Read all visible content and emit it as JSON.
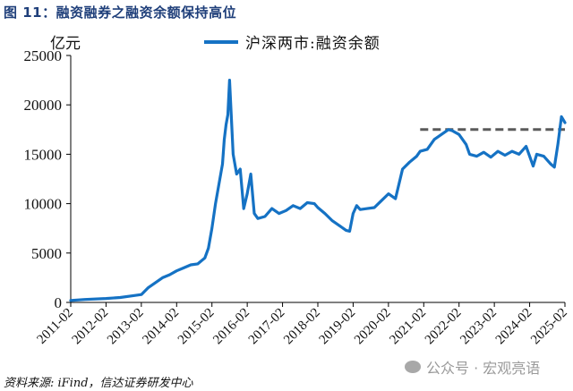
{
  "figure": {
    "title": "图 11：融资融券之融资余额保持高位",
    "unit_label": "亿元",
    "source": "资料来源: iFind，信达证券研发中心",
    "watermark": "公众号 · 宏观亮语"
  },
  "legend": {
    "series_label": "沪深两市:融资余额",
    "series_color": "#1572c4",
    "reference_color": "#5a5a5a"
  },
  "chart_data": {
    "type": "line",
    "title": "融资融券之融资余额保持高位",
    "xlabel": "",
    "ylabel": "亿元",
    "ylim": [
      0,
      25000
    ],
    "yticks": [
      0,
      5000,
      10000,
      15000,
      20000,
      25000
    ],
    "ytick_labels": [
      "0",
      "5000",
      "10000",
      "15000",
      "20000",
      "25000"
    ],
    "xtick_labels": [
      "2011-02",
      "2012-02",
      "2013-02",
      "2014-02",
      "2015-02",
      "2016-02",
      "2017-02",
      "2018-02",
      "2019-02",
      "2020-02",
      "2021-02",
      "2022-02",
      "2023-02",
      "2024-02",
      "2025-02"
    ],
    "grid": false,
    "legend_position": "top-center",
    "series": [
      {
        "name": "沪深两市:融资余额",
        "color": "#1572c4",
        "x": [
          2011.1,
          2011.5,
          2012.1,
          2012.5,
          2012.9,
          2013.1,
          2013.3,
          2013.5,
          2013.7,
          2013.9,
          2014.1,
          2014.3,
          2014.5,
          2014.7,
          2014.9,
          2015.0,
          2015.1,
          2015.2,
          2015.3,
          2015.4,
          2015.45,
          2015.5,
          2015.55,
          2015.6,
          2015.7,
          2015.8,
          2015.9,
          2016.0,
          2016.1,
          2016.2,
          2016.3,
          2016.4,
          2016.6,
          2016.8,
          2017.0,
          2017.2,
          2017.4,
          2017.6,
          2017.8,
          2018.0,
          2018.1,
          2018.3,
          2018.5,
          2018.7,
          2018.9,
          2019.0,
          2019.1,
          2019.2,
          2019.3,
          2019.5,
          2019.7,
          2019.9,
          2020.1,
          2020.3,
          2020.5,
          2020.7,
          2020.8,
          2020.9,
          2021.0,
          2021.2,
          2021.4,
          2021.6,
          2021.8,
          2021.9,
          2022.1,
          2022.3,
          2022.4,
          2022.6,
          2022.8,
          2023.0,
          2023.2,
          2023.4,
          2023.6,
          2023.8,
          2024.0,
          2024.2,
          2024.3,
          2024.5,
          2024.7,
          2024.8,
          2024.9,
          2025.0,
          2025.1
        ],
        "values": [
          200,
          300,
          400,
          500,
          700,
          800,
          1500,
          2000,
          2500,
          2800,
          3200,
          3500,
          3800,
          3900,
          4500,
          5500,
          7500,
          10000,
          12000,
          14000,
          16500,
          18000,
          19000,
          22500,
          15000,
          13000,
          13500,
          9500,
          11000,
          13000,
          9000,
          8500,
          8700,
          9500,
          9000,
          9300,
          9800,
          9500,
          10100,
          10000,
          9600,
          9000,
          8300,
          7800,
          7300,
          7200,
          9000,
          9800,
          9400,
          9500,
          9600,
          10300,
          11000,
          10500,
          13500,
          14200,
          14500,
          14800,
          15300,
          15500,
          16500,
          17000,
          17500,
          17400,
          17000,
          16000,
          15000,
          14800,
          15200,
          14700,
          15300,
          14900,
          15300,
          15000,
          15800,
          13800,
          15000,
          14800,
          14000,
          13700,
          16000,
          18800,
          18200
        ]
      },
      {
        "name": "reference-high",
        "style": "dashed",
        "color": "#5a5a5a",
        "x": [
          2021.0,
          2025.1
        ],
        "values": [
          17500,
          17500
        ]
      }
    ]
  }
}
